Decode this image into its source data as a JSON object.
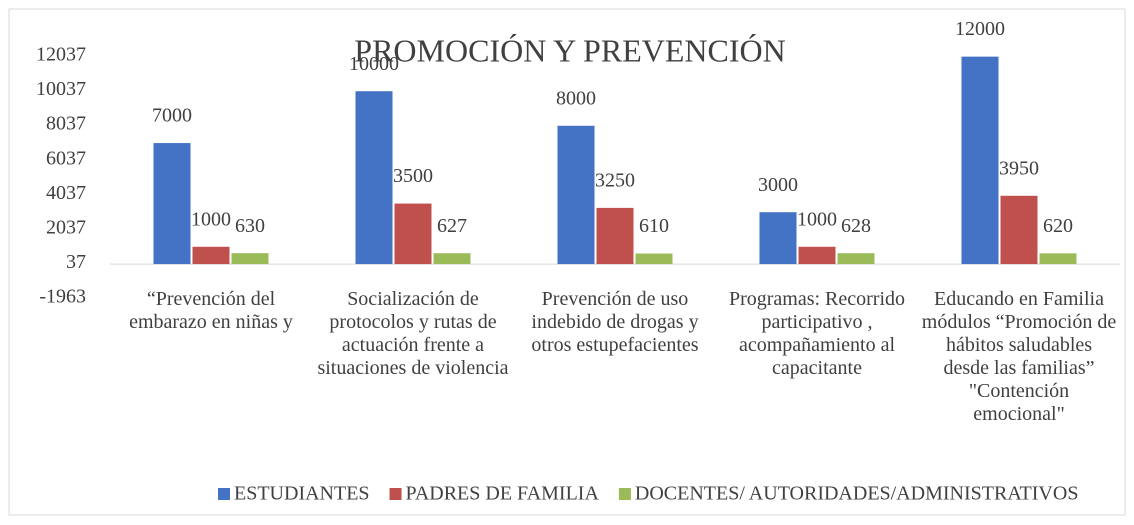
{
  "chart_data": {
    "type": "bar",
    "title": "PROMOCIÓN Y PREVENCIÓN",
    "categories": [
      "“Prevención del embarazo en niñas y",
      "Socialización de protocolos y rutas de actuación frente a situaciones de violencia",
      "Prevención de uso indebido de drogas y otros estupefacientes",
      "Programas: Recorrido participativo , acompañamiento al capacitante",
      "Educando en Familia módulos “Promoción de hábitos saludables desde las familias” \"Contención emocional\""
    ],
    "series": [
      {
        "name": "ESTUDIANTES",
        "color": "#4472c4",
        "values": [
          7000,
          10000,
          8000,
          3000,
          12000
        ]
      },
      {
        "name": "PADRES DE FAMILIA",
        "color": "#c0504d",
        "values": [
          1000,
          3500,
          3250,
          1000,
          3950
        ]
      },
      {
        "name": "DOCENTES/ AUTORIDADES/ADMINISTRATIVOS",
        "color": "#9bbb59",
        "values": [
          630,
          627,
          610,
          628,
          620
        ]
      }
    ],
    "ylim": [
      -1963,
      12037
    ],
    "yticks": [
      -1963,
      37,
      2037,
      4037,
      6037,
      8037,
      10037,
      12037
    ],
    "grid": false,
    "legend": "bottom"
  }
}
